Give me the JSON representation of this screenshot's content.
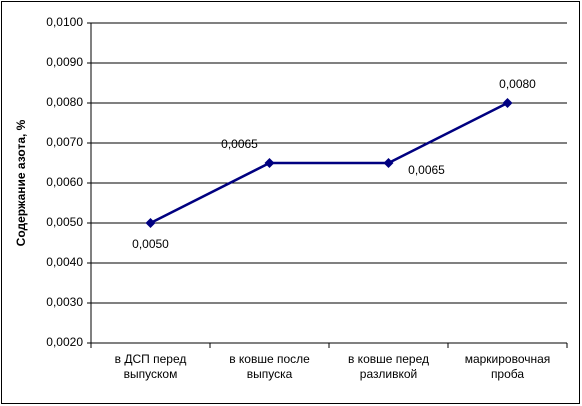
{
  "chart_data": {
    "type": "line",
    "y_label": "Содержание азота, %",
    "categories": [
      "в ДСП перед\nвыпуском",
      "в ковше после\nвыпуска",
      "в ковше перед\nразливкой",
      "маркировочная\nпроба"
    ],
    "series": [
      {
        "color": "#000080",
        "values": [
          0.005,
          0.0065,
          0.0065,
          0.008
        ],
        "value_labels": [
          "0,0050",
          "0,0065",
          "0,0065",
          "0,0080"
        ]
      }
    ],
    "ylim": [
      0.002,
      0.01
    ],
    "yticks": [
      {
        "value": 0.002,
        "label": "0,0020"
      },
      {
        "value": 0.003,
        "label": "0,0030"
      },
      {
        "value": 0.004,
        "label": "0,0040"
      },
      {
        "value": 0.005,
        "label": "0,0050"
      },
      {
        "value": 0.006,
        "label": "0,0060"
      },
      {
        "value": 0.007,
        "label": "0,0070"
      },
      {
        "value": 0.008,
        "label": "0,0080"
      },
      {
        "value": 0.009,
        "label": "0,0090"
      },
      {
        "value": 0.01,
        "label": "0,0100"
      }
    ],
    "grid": true
  }
}
